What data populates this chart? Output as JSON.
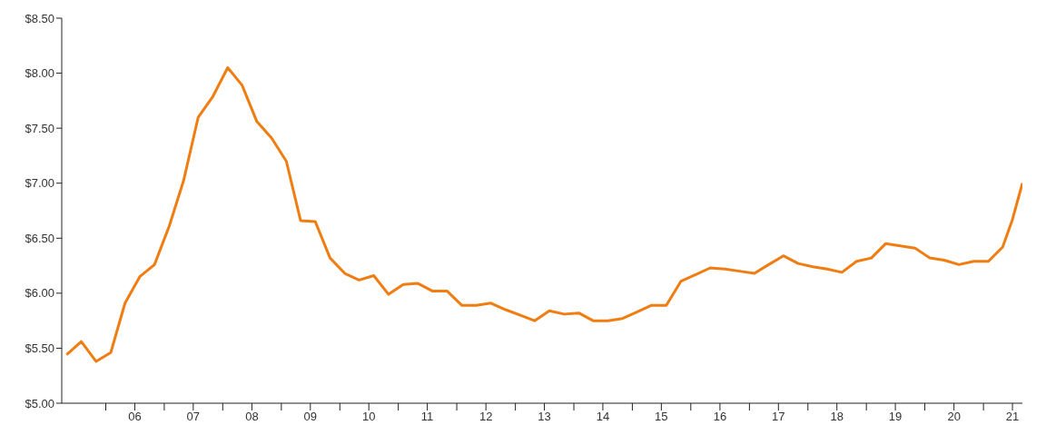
{
  "chart_data": {
    "type": "line",
    "x": [
      "2005-05",
      "2005-08",
      "2005-11",
      "2006-02",
      "2006-05",
      "2006-08",
      "2006-11",
      "2007-02",
      "2007-05",
      "2007-08",
      "2007-11",
      "2008-02",
      "2008-05",
      "2008-08",
      "2008-11",
      "2009-02",
      "2009-05",
      "2009-08",
      "2009-11",
      "2010-02",
      "2010-05",
      "2010-08",
      "2010-11",
      "2011-02",
      "2011-05",
      "2011-08",
      "2011-11",
      "2012-02",
      "2012-05",
      "2012-08",
      "2012-11",
      "2013-02",
      "2013-05",
      "2013-08",
      "2013-11",
      "2014-02",
      "2014-05",
      "2014-08",
      "2014-11",
      "2015-02",
      "2015-05",
      "2015-08",
      "2015-11",
      "2016-02",
      "2016-05",
      "2016-08",
      "2016-11",
      "2017-02",
      "2017-05",
      "2017-08",
      "2017-11",
      "2018-02",
      "2018-05",
      "2018-08",
      "2018-11",
      "2019-02",
      "2019-05",
      "2019-08",
      "2019-11",
      "2020-02",
      "2020-05",
      "2020-08",
      "2020-11",
      "2021-02",
      "2021-05",
      "2021-07",
      "2021-09"
    ],
    "series": [
      {
        "color": "#f07d12",
        "values": [
          5.44,
          5.56,
          5.38,
          5.46,
          5.91,
          6.15,
          6.26,
          6.61,
          7.02,
          7.6,
          7.79,
          8.05,
          7.89,
          7.56,
          7.41,
          7.2,
          6.66,
          6.65,
          6.32,
          6.18,
          6.12,
          6.16,
          5.99,
          6.08,
          6.09,
          6.02,
          6.02,
          5.89,
          5.89,
          5.91,
          5.85,
          5.8,
          5.75,
          5.84,
          5.81,
          5.82,
          5.75,
          5.75,
          5.77,
          5.83,
          5.89,
          5.89,
          6.11,
          6.17,
          6.23,
          6.22,
          6.2,
          6.18,
          6.26,
          6.34,
          6.27,
          6.24,
          6.22,
          6.19,
          6.29,
          6.32,
          6.45,
          6.43,
          6.41,
          6.32,
          6.3,
          6.26,
          6.29,
          6.29,
          6.42,
          6.67,
          7.0
        ]
      }
    ],
    "xlim": [
      "2005-04",
      "2021-09"
    ],
    "xticks": [
      {
        "value": "2006-01",
        "label": null
      },
      {
        "value": "2006-07",
        "label": "06"
      },
      {
        "value": "2007-01",
        "label": null
      },
      {
        "value": "2007-07",
        "label": "07"
      },
      {
        "value": "2008-01",
        "label": null
      },
      {
        "value": "2008-07",
        "label": "08"
      },
      {
        "value": "2009-01",
        "label": null
      },
      {
        "value": "2009-07",
        "label": "09"
      },
      {
        "value": "2010-01",
        "label": null
      },
      {
        "value": "2010-07",
        "label": "10"
      },
      {
        "value": "2011-01",
        "label": null
      },
      {
        "value": "2011-07",
        "label": "11"
      },
      {
        "value": "2012-01",
        "label": null
      },
      {
        "value": "2012-07",
        "label": "12"
      },
      {
        "value": "2013-01",
        "label": null
      },
      {
        "value": "2013-07",
        "label": "13"
      },
      {
        "value": "2014-01",
        "label": null
      },
      {
        "value": "2014-07",
        "label": "14"
      },
      {
        "value": "2015-01",
        "label": null
      },
      {
        "value": "2015-07",
        "label": "15"
      },
      {
        "value": "2016-01",
        "label": null
      },
      {
        "value": "2016-07",
        "label": "16"
      },
      {
        "value": "2017-01",
        "label": null
      },
      {
        "value": "2017-07",
        "label": "17"
      },
      {
        "value": "2018-01",
        "label": null
      },
      {
        "value": "2018-07",
        "label": "18"
      },
      {
        "value": "2019-01",
        "label": null
      },
      {
        "value": "2019-07",
        "label": "19"
      },
      {
        "value": "2020-01",
        "label": null
      },
      {
        "value": "2020-07",
        "label": "20"
      },
      {
        "value": "2021-01",
        "label": null
      },
      {
        "value": "2021-07",
        "label": "21"
      }
    ],
    "ylim": [
      5,
      8.5
    ],
    "yticks": [
      {
        "value": 5,
        "label": "$5.00"
      },
      {
        "value": 5.5,
        "label": "$5.50"
      },
      {
        "value": 6,
        "label": "$6.00"
      },
      {
        "value": 6.5,
        "label": "$6.50"
      },
      {
        "value": 7,
        "label": "$7.00"
      },
      {
        "value": 7.5,
        "label": "$7.50"
      },
      {
        "value": 8,
        "label": "$8.00"
      },
      {
        "value": 8.5,
        "label": "$8.50"
      }
    ],
    "grid": false,
    "legend": false,
    "marker": "none",
    "line_style": "solid"
  }
}
